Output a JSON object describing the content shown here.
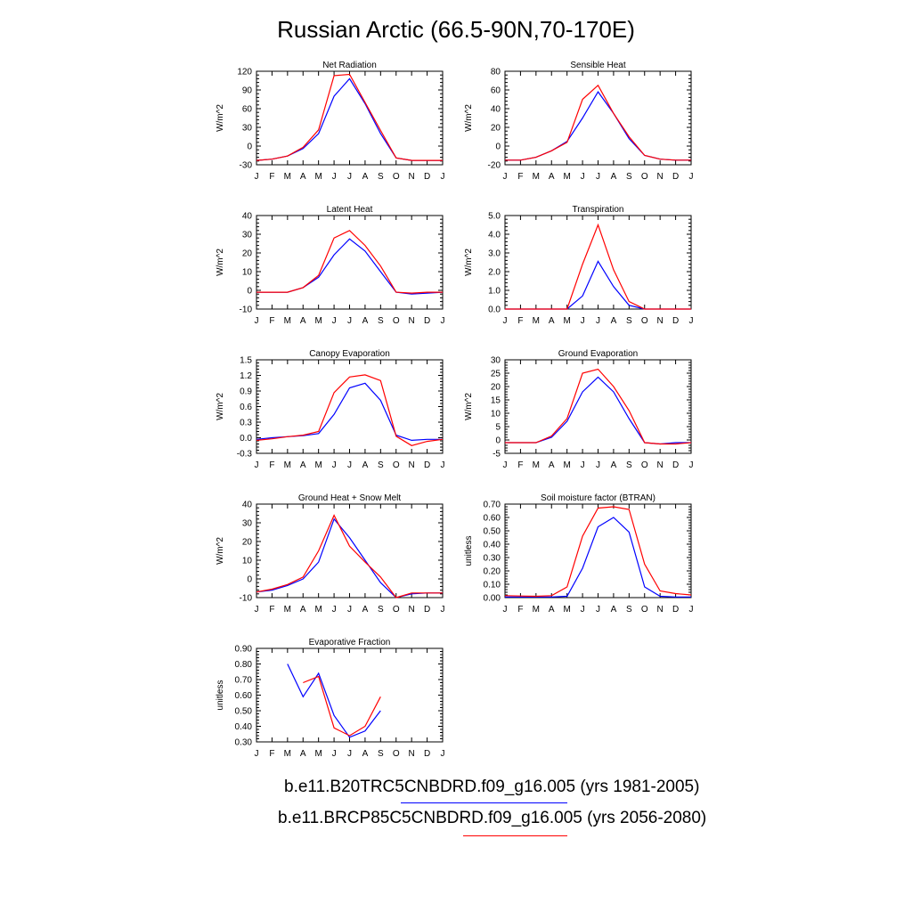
{
  "title": "Russian Arctic (66.5-90N,70-170E)",
  "month_labels": [
    "J",
    "F",
    "M",
    "A",
    "M",
    "J",
    "J",
    "A",
    "S",
    "O",
    "N",
    "D",
    "J"
  ],
  "colors": {
    "series_1": "#0000ff",
    "series_2": "#ff0000",
    "axis": "#000000"
  },
  "legend": [
    {
      "label": "b.e11.B20TRC5CNBDRD.f09_g16.005 (yrs 1981-2005)",
      "color": "#0000ff"
    },
    {
      "label": "b.e11.BRCP85C5CNBDRD.f09_g16.005 (yrs 2056-2080)",
      "color": "#ff0000"
    }
  ],
  "chart_data": [
    {
      "type": "line",
      "title": "Net Radiation",
      "ylabel": "W/m^2",
      "ylim": [
        -30,
        120
      ],
      "yticks": [
        "-30",
        "0",
        "30",
        "60",
        "90",
        "120"
      ],
      "ytick_values": [
        -30,
        0,
        30,
        60,
        90,
        120
      ],
      "series": [
        {
          "color": "#0000ff",
          "values": [
            -23,
            -21,
            -16,
            -4,
            20,
            80,
            108,
            68,
            20,
            -19,
            -23,
            -23,
            -23
          ]
        },
        {
          "color": "#ff0000",
          "values": [
            -23,
            -21,
            -16,
            -2,
            26,
            113,
            115,
            70,
            25,
            -19,
            -23,
            -23,
            -23
          ]
        }
      ]
    },
    {
      "type": "line",
      "title": "Sensible Heat",
      "ylabel": "W/m^2",
      "ylim": [
        -20,
        80
      ],
      "yticks": [
        "-20",
        "0",
        "20",
        "40",
        "60",
        "80"
      ],
      "ytick_values": [
        -20,
        0,
        20,
        40,
        60,
        80
      ],
      "series": [
        {
          "color": "#0000ff",
          "values": [
            -15,
            -15,
            -12,
            -5,
            5,
            30,
            58,
            35,
            8,
            -10,
            -14,
            -15,
            -15
          ]
        },
        {
          "color": "#ff0000",
          "values": [
            -15,
            -15,
            -12,
            -5,
            4,
            50,
            65,
            35,
            10,
            -10,
            -14,
            -15,
            -15
          ]
        }
      ]
    },
    {
      "type": "line",
      "title": "Latent Heat",
      "ylabel": "W/m^2",
      "ylim": [
        -10,
        40
      ],
      "yticks": [
        "-10",
        "0",
        "10",
        "20",
        "30",
        "40"
      ],
      "ytick_values": [
        -10,
        0,
        10,
        20,
        30,
        40
      ],
      "series": [
        {
          "color": "#0000ff",
          "values": [
            -1,
            -1,
            -1,
            1.5,
            7,
            19,
            27.5,
            21,
            10,
            -1,
            -2,
            -1.5,
            -1
          ]
        },
        {
          "color": "#ff0000",
          "values": [
            -1,
            -1,
            -1,
            1.5,
            8,
            28,
            32,
            24,
            13,
            -1,
            -1.5,
            -1,
            -1
          ]
        }
      ]
    },
    {
      "type": "line",
      "title": "Transpiration",
      "ylabel": "W/m^2",
      "ylim": [
        0,
        5
      ],
      "yticks": [
        "0.0",
        "1.0",
        "2.0",
        "3.0",
        "4.0",
        "5.0"
      ],
      "ytick_values": [
        0,
        1,
        2,
        3,
        4,
        5
      ],
      "series": [
        {
          "color": "#0000ff",
          "values": [
            0,
            0,
            0,
            0,
            0,
            0.7,
            2.55,
            1.2,
            0.2,
            0,
            0,
            0,
            0
          ]
        },
        {
          "color": "#ff0000",
          "values": [
            0,
            0,
            0,
            0,
            0,
            2.4,
            4.5,
            2.1,
            0.4,
            0,
            0,
            0,
            0
          ]
        }
      ]
    },
    {
      "type": "line",
      "title": "Canopy Evaporation",
      "ylabel": "W/m^2",
      "ylim": [
        -0.3,
        1.5
      ],
      "yticks": [
        "-0.3",
        "0.0",
        "0.3",
        "0.6",
        "0.9",
        "1.2",
        "1.5"
      ],
      "ytick_values": [
        -0.3,
        0,
        0.3,
        0.6,
        0.9,
        1.2,
        1.5
      ],
      "series": [
        {
          "color": "#0000ff",
          "values": [
            -0.03,
            0,
            0.02,
            0.04,
            0.08,
            0.45,
            0.96,
            1.05,
            0.72,
            0.05,
            -0.05,
            -0.03,
            -0.03
          ]
        },
        {
          "color": "#ff0000",
          "values": [
            -0.05,
            -0.02,
            0.02,
            0.05,
            0.12,
            0.87,
            1.17,
            1.21,
            1.1,
            0.03,
            -0.15,
            -0.07,
            -0.03
          ]
        }
      ]
    },
    {
      "type": "line",
      "title": "Ground Evaporation",
      "ylabel": "W/m^2",
      "ylim": [
        -5,
        30
      ],
      "yticks": [
        "-5",
        "0",
        "5",
        "10",
        "15",
        "20",
        "25",
        "30"
      ],
      "ytick_values": [
        -5,
        0,
        5,
        10,
        15,
        20,
        25,
        30
      ],
      "series": [
        {
          "color": "#0000ff",
          "values": [
            -1,
            -1,
            -1,
            1,
            7,
            18,
            23.5,
            18,
            8,
            -1,
            -1.5,
            -1,
            -1
          ]
        },
        {
          "color": "#ff0000",
          "values": [
            -1,
            -1,
            -1,
            1.5,
            8,
            25,
            26.5,
            20,
            11,
            -1,
            -1.5,
            -1.5,
            -1
          ]
        }
      ]
    },
    {
      "type": "line",
      "title": "Ground Heat + Snow Melt",
      "ylabel": "W/m^2",
      "ylim": [
        -10,
        40
      ],
      "yticks": [
        "-10",
        "0",
        "10",
        "20",
        "30",
        "40"
      ],
      "ytick_values": [
        -10,
        0,
        10,
        20,
        30,
        40
      ],
      "series": [
        {
          "color": "#0000ff",
          "values": [
            -7,
            -6,
            -3.5,
            0,
            9,
            32,
            22,
            10,
            -2,
            -10,
            -8,
            -7.5,
            -7.5
          ]
        },
        {
          "color": "#ff0000",
          "values": [
            -7,
            -5.5,
            -3,
            1,
            15,
            34,
            17.5,
            9,
            1,
            -10,
            -7.5,
            -7.5,
            -7.5
          ]
        }
      ]
    },
    {
      "type": "line",
      "title": "Soil moisture factor (BTRAN)",
      "ylabel": "unitless",
      "ylim": [
        0,
        0.7
      ],
      "yticks": [
        "0.00",
        "0.10",
        "0.20",
        "0.30",
        "0.40",
        "0.50",
        "0.60",
        "0.70"
      ],
      "ytick_values": [
        0,
        0.1,
        0.2,
        0.3,
        0.4,
        0.5,
        0.6,
        0.7
      ],
      "series": [
        {
          "color": "#0000ff",
          "values": [
            0.005,
            0.005,
            0.005,
            0.005,
            0.01,
            0.22,
            0.53,
            0.6,
            0.49,
            0.08,
            0.01,
            0.005,
            0.005
          ]
        },
        {
          "color": "#ff0000",
          "values": [
            0.015,
            0.012,
            0.01,
            0.015,
            0.08,
            0.46,
            0.67,
            0.68,
            0.66,
            0.25,
            0.05,
            0.03,
            0.02
          ]
        }
      ]
    },
    {
      "type": "line",
      "title": "Evaporative Fraction",
      "ylabel": "unitless",
      "ylim": [
        0.3,
        0.9
      ],
      "yticks": [
        "0.30",
        "0.40",
        "0.50",
        "0.60",
        "0.70",
        "0.80",
        "0.90"
      ],
      "ytick_values": [
        0.3,
        0.4,
        0.5,
        0.6,
        0.7,
        0.8,
        0.9
      ],
      "series": [
        {
          "color": "#0000ff",
          "values": [
            null,
            null,
            0.8,
            0.59,
            0.74,
            0.47,
            0.33,
            0.37,
            0.5,
            null,
            null,
            null,
            null
          ]
        },
        {
          "color": "#ff0000",
          "values": [
            null,
            null,
            null,
            0.68,
            0.72,
            0.39,
            0.34,
            0.4,
            0.59,
            null,
            null,
            null,
            null
          ]
        }
      ]
    }
  ]
}
